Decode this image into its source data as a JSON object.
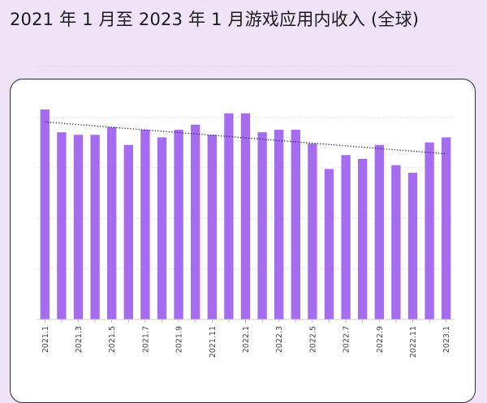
{
  "title": "2021 年 1 月至 2023 年 1 月游戏应用内收入 (全球)",
  "colors": {
    "bar": "#a66cf0",
    "trend": "#1f2a5a",
    "grid": "#d9d9d9",
    "background": "#efe3f8"
  },
  "chart_data": {
    "type": "bar",
    "title": "2021 年 1 月至 2023 年 1 月游戏应用内收入 (全球)",
    "xlabel": "",
    "ylabel": "",
    "ylim": [
      0,
      100
    ],
    "categories": [
      "2021.1",
      "2021.2",
      "2021.3",
      "2021.4",
      "2021.5",
      "2021.6",
      "2021.7",
      "2021.8",
      "2021.9",
      "2021.10",
      "2021.11",
      "2021.12",
      "2022.1",
      "2022.2",
      "2022.3",
      "2022.4",
      "2022.5",
      "2022.6",
      "2022.7",
      "2022.8",
      "2022.9",
      "2022.10",
      "2022.11",
      "2022.12",
      "2023.1"
    ],
    "tick_labels": [
      "2021.1",
      "",
      "2021.3",
      "",
      "2021.5",
      "",
      "2021.7",
      "",
      "2021.9",
      "",
      "2021.11",
      "",
      "2022.1",
      "",
      "2022.3",
      "",
      "2022.5",
      "",
      "2022.7",
      "",
      "2022.9",
      "",
      "2022.11",
      "",
      "2023.1"
    ],
    "values": [
      83,
      74,
      73,
      73,
      76,
      69,
      75,
      72,
      75,
      77,
      73,
      81.5,
      81.5,
      74,
      75,
      75,
      69.5,
      59.5,
      65,
      63.5,
      69,
      61,
      58,
      70,
      72
    ],
    "trendline": true,
    "grid": true,
    "legend": "none"
  }
}
